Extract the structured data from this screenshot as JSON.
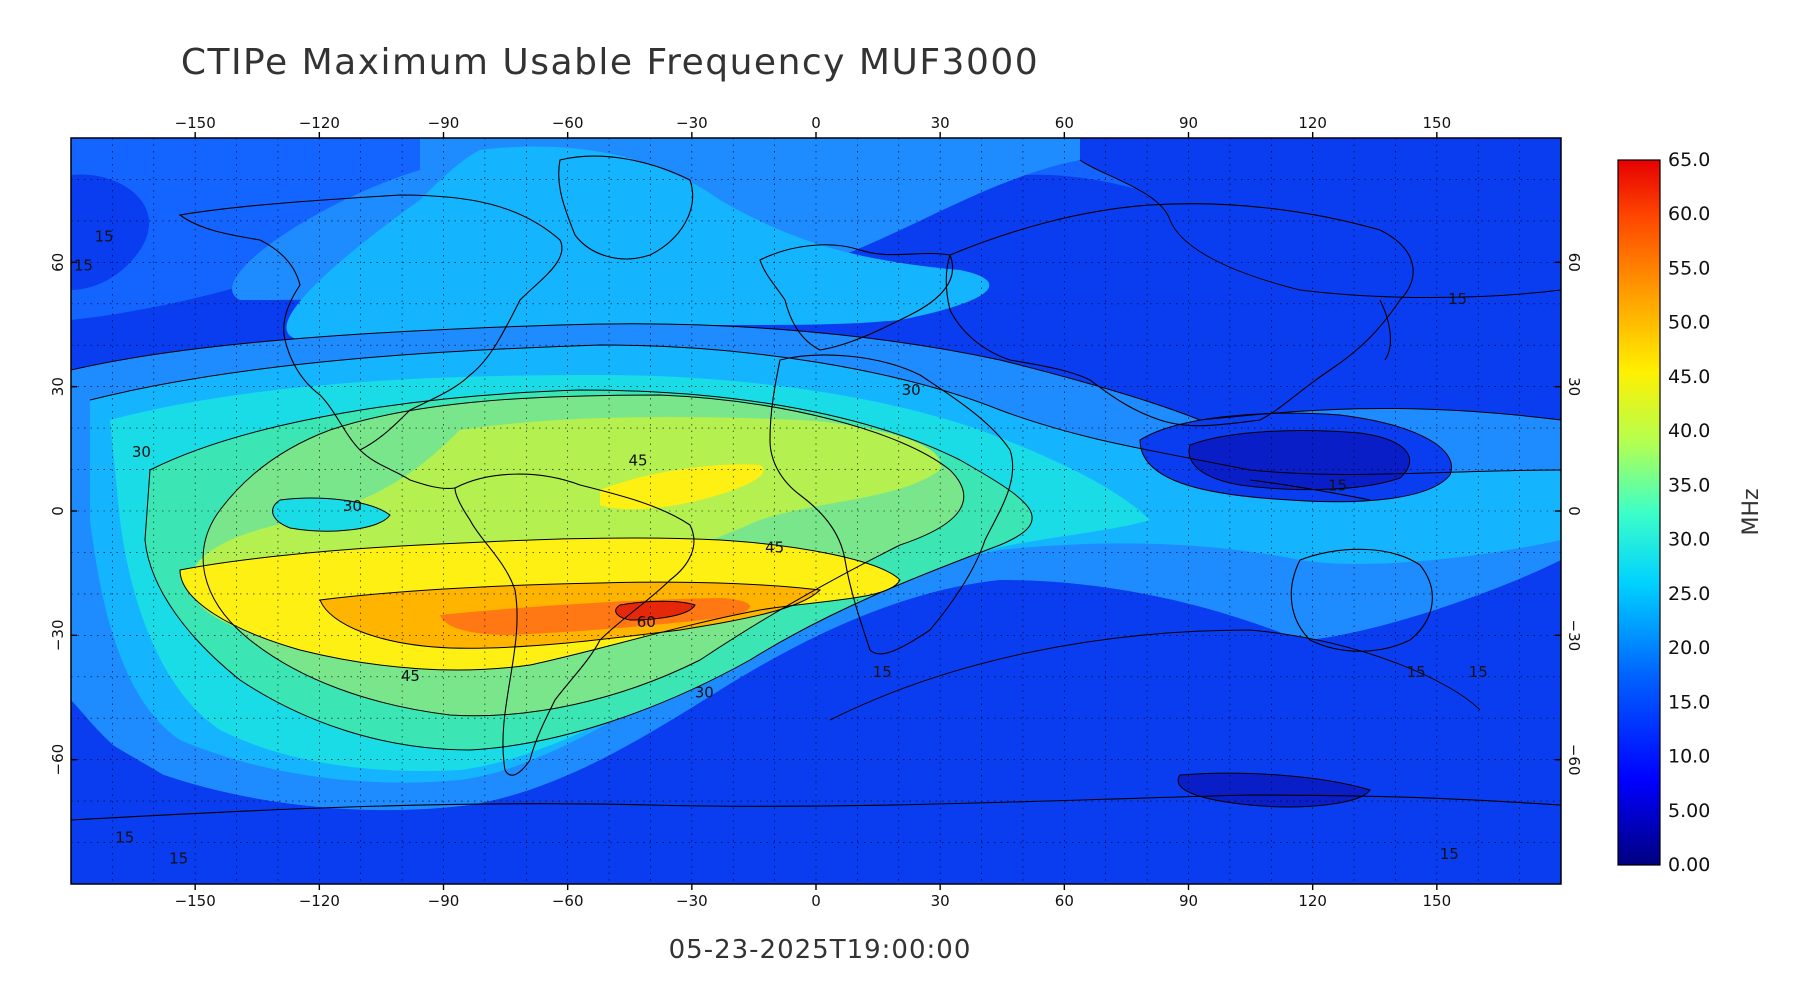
{
  "title": "CTIPe Maximum Usable Frequency MUF3000",
  "timestamp": "05-23-2025T19:00:00",
  "map": {
    "longitude_ticks": [
      -150,
      -120,
      -90,
      -60,
      -30,
      0,
      30,
      60,
      90,
      120,
      150
    ],
    "latitude_ticks": [
      60,
      30,
      0,
      -30,
      -60
    ],
    "lon_range": [
      -180,
      180
    ],
    "lat_range": [
      -90,
      90
    ],
    "contour_levels_labeled": [
      "15",
      "30",
      "45",
      "60"
    ],
    "grid": "dotted"
  },
  "colorbar": {
    "unit": "MHz",
    "min": 0.0,
    "max": 65.0,
    "tick_labels": [
      "65.0",
      "60.0",
      "55.0",
      "50.0",
      "45.0",
      "40.0",
      "35.0",
      "30.0",
      "25.0",
      "20.0",
      "15.0",
      "10.0",
      "5.00",
      "0.00"
    ],
    "tick_values": [
      65,
      60,
      55,
      50,
      45,
      40,
      35,
      30,
      25,
      20,
      15,
      10,
      5,
      0
    ],
    "colors": [
      "#00008f",
      "#0000ff",
      "#0060ff",
      "#00c8ff",
      "#40ffc0",
      "#c0ff40",
      "#ffe000",
      "#ff7000",
      "#e00000"
    ]
  },
  "colors": {
    "c0_5": "#0a1ec8",
    "c5_10": "#0a3cf0",
    "c10_15": "#1464ff",
    "c15_20": "#1e8cff",
    "c20_25": "#14b4ff",
    "c25_30": "#19dce6",
    "c30_35": "#3ce6b4",
    "c35_40": "#7ae68c",
    "c40_45": "#b4f050",
    "c45_50": "#fff014",
    "c50_55": "#ffb400",
    "c55_60": "#ff7814",
    "c60_65": "#e6280a"
  }
}
